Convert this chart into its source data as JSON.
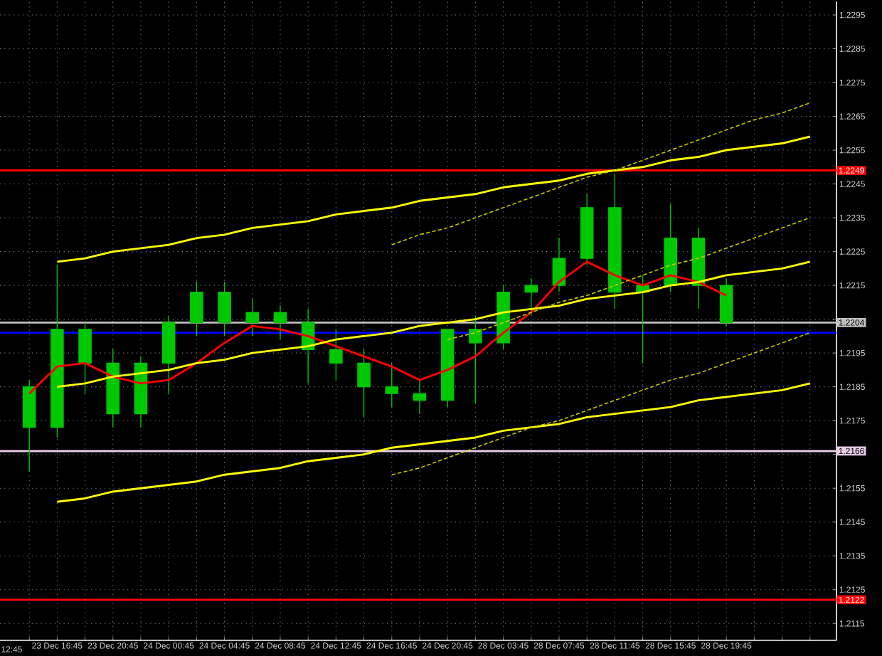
{
  "chart_data": {
    "type": "candlestick",
    "color": "#00c800",
    "annotations": [
      "12:45"
    ],
    "categories": [
      null,
      "23 Dec 16:45",
      null,
      "23 Dec 20:45",
      null,
      "24 Dec 00:45",
      null,
      "24 Dec 04:45",
      null,
      "24 Dec 08:45",
      null,
      "24 Dec 12:45",
      null,
      "24 Dec 16:45",
      null,
      "24 Dec 20:45",
      null,
      "28 Dec 03:45",
      null,
      "28 Dec 07:45",
      null,
      "28 Dec 11:45",
      null,
      "28 Dec 15:45",
      null,
      "28 Dec 19:45",
      null,
      null,
      null
    ],
    "ohlc": [
      [
        1.2185,
        1.2187,
        1.216,
        1.2173
      ],
      [
        1.2173,
        1.2221,
        1.217,
        1.2202
      ],
      [
        1.2202,
        1.2204,
        1.2183,
        1.2192
      ],
      [
        1.2192,
        1.2196,
        1.2173,
        1.2177
      ],
      [
        1.2177,
        1.2194,
        1.2173,
        1.2192
      ],
      [
        1.2192,
        1.2206,
        1.2183,
        1.2204
      ],
      [
        1.2204,
        1.2216,
        1.22,
        1.2213
      ],
      [
        1.2213,
        1.2216,
        1.22,
        1.2204
      ],
      [
        1.2204,
        1.2211,
        1.22,
        1.2207
      ],
      [
        1.2207,
        1.2209,
        1.2199,
        1.2204
      ],
      [
        1.2204,
        1.2208,
        1.2186,
        1.2196
      ],
      [
        1.2196,
        1.2202,
        1.2187,
        1.2192
      ],
      [
        1.2192,
        1.2196,
        1.2176,
        1.2185
      ],
      [
        1.2185,
        1.2192,
        1.2179,
        1.2183
      ],
      [
        1.2183,
        1.2187,
        1.2177,
        1.2181
      ],
      [
        1.2181,
        1.2202,
        1.2179,
        1.2202
      ],
      [
        1.2202,
        1.2206,
        1.218,
        1.2198
      ],
      [
        1.2198,
        1.2215,
        1.2196,
        1.2213
      ],
      [
        1.2213,
        1.2217,
        1.2206,
        1.2215
      ],
      [
        1.2215,
        1.2229,
        1.2213,
        1.2223
      ],
      [
        1.2223,
        1.2242,
        1.2221,
        1.2238
      ],
      [
        1.2238,
        1.2248,
        1.2208,
        1.2213
      ],
      [
        1.2213,
        1.2218,
        1.2192,
        1.2215
      ],
      [
        1.2215,
        1.2239,
        1.2213,
        1.2229
      ],
      [
        1.2229,
        1.2232,
        1.2208,
        1.2215
      ],
      [
        1.2215,
        1.2217,
        1.2203,
        1.2204
      ],
      null,
      null,
      null
    ],
    "series": [
      {
        "type": "line",
        "color": "#ff0000",
        "values": [
          1.2183,
          1.2191,
          1.2192,
          1.2188,
          1.2186,
          1.2187,
          1.2192,
          1.2198,
          1.2203,
          1.2202,
          1.22,
          1.2197,
          1.2194,
          1.2191,
          1.2187,
          1.219,
          1.2194,
          1.2201,
          1.2207,
          1.2216,
          1.2222,
          1.2218,
          1.2215,
          1.2218,
          1.2216,
          1.2212,
          null,
          null,
          null
        ]
      },
      {
        "type": "line",
        "color": "#ffff00",
        "line_style": "solid",
        "values": [
          null,
          1.2222,
          1.2223,
          1.2225,
          1.2226,
          1.2227,
          1.2229,
          1.223,
          1.2232,
          1.2233,
          1.2234,
          1.2236,
          1.2237,
          1.2238,
          1.224,
          1.2241,
          1.2242,
          1.2244,
          1.2245,
          1.2246,
          1.2248,
          1.2249,
          1.225,
          1.2252,
          1.2253,
          1.2255,
          1.2256,
          1.2257,
          1.2259
        ]
      },
      {
        "type": "line",
        "color": "#ffff00",
        "line_style": "solid",
        "values": [
          null,
          1.2185,
          1.2186,
          1.2188,
          1.2189,
          1.219,
          1.2192,
          1.2193,
          1.2195,
          1.2196,
          1.2197,
          1.2199,
          1.22,
          1.2201,
          1.2203,
          1.2204,
          1.2205,
          1.2207,
          1.2208,
          1.2209,
          1.2211,
          1.2212,
          1.2213,
          1.2215,
          1.2216,
          1.2218,
          1.2219,
          1.222,
          1.2222
        ]
      },
      {
        "type": "line",
        "color": "#ffff00",
        "line_style": "solid",
        "values": [
          null,
          1.2151,
          1.2152,
          1.2154,
          1.2155,
          1.2156,
          1.2157,
          1.2159,
          1.216,
          1.2161,
          1.2163,
          1.2164,
          1.2165,
          1.2167,
          1.2168,
          1.2169,
          1.217,
          1.2172,
          1.2173,
          1.2174,
          1.2176,
          1.2177,
          1.2178,
          1.2179,
          1.2181,
          1.2182,
          1.2183,
          1.2184,
          1.2186
        ]
      },
      {
        "type": "line",
        "color": "#c8c800",
        "line_style": "dashed",
        "values": [
          null,
          null,
          null,
          null,
          null,
          null,
          null,
          null,
          null,
          null,
          null,
          null,
          null,
          1.2227,
          1.223,
          1.2232,
          1.2235,
          1.2238,
          1.2241,
          1.2244,
          1.2247,
          1.2249,
          1.2252,
          1.2255,
          1.2258,
          1.2261,
          1.2264,
          1.2266,
          1.2269
        ]
      },
      {
        "type": "line",
        "color": "#c8c800",
        "line_style": "dashed",
        "values": [
          null,
          null,
          null,
          null,
          null,
          null,
          null,
          null,
          null,
          null,
          null,
          null,
          null,
          null,
          null,
          1.2199,
          1.2201,
          1.2204,
          1.2207,
          1.221,
          1.2212,
          1.2215,
          1.2218,
          1.2221,
          1.2223,
          1.2226,
          1.2229,
          1.2232,
          1.2235
        ]
      },
      {
        "type": "line",
        "color": "#c8c800",
        "line_style": "dashed",
        "values": [
          null,
          null,
          null,
          null,
          null,
          null,
          null,
          null,
          null,
          null,
          null,
          null,
          null,
          1.2159,
          1.2161,
          1.2164,
          1.2167,
          1.217,
          1.2173,
          1.2175,
          1.2178,
          1.2181,
          1.2184,
          1.2187,
          1.2189,
          1.2192,
          1.2195,
          1.2198,
          1.2201
        ]
      }
    ],
    "ref_lines": [
      {
        "axis": "y",
        "value": 1.2249,
        "label": "1.2249",
        "color": "#ff0000"
      },
      {
        "axis": "y",
        "value": 1.2204,
        "label": "1.2204",
        "color": "#c0c0c0"
      },
      {
        "axis": "y",
        "value": 1.2201,
        "color": "#0000ff"
      },
      {
        "axis": "y",
        "value": 1.2166,
        "label": "1.2166",
        "color": "#e6cce6"
      },
      {
        "axis": "y",
        "value": 1.2122,
        "label": "1.2122",
        "color": "#ff0000"
      }
    ],
    "ylim": [
      1.211,
      1.2299
    ],
    "yticks": [
      1.2115,
      1.2125,
      1.2135,
      1.2145,
      1.2155,
      {
        "value": 1.2165,
        "label": null
      },
      1.2175,
      1.2185,
      1.2195,
      {
        "value": 1.2205,
        "label": null
      },
      1.2215,
      1.2225,
      1.2235,
      1.2245,
      1.2255,
      1.2265,
      1.2275,
      1.2285,
      1.2295
    ],
    "grid": true
  }
}
